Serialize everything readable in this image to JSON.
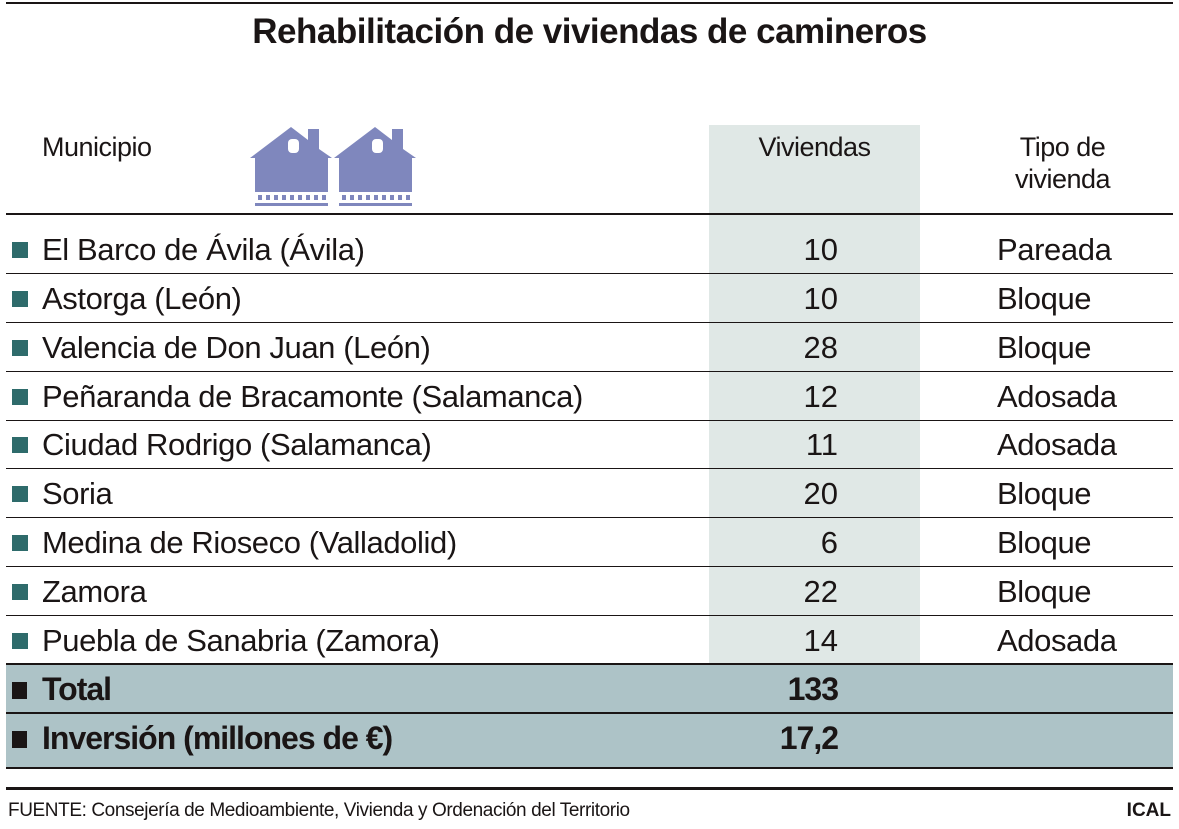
{
  "title": "Rehabilitación de viviendas de camineros",
  "headers": {
    "municipio": "Municipio",
    "viviendas": "Viviendas",
    "tipo": "Tipo de vivienda"
  },
  "icon": "houses-icon",
  "colors": {
    "bullet": "#2e6b6b",
    "viviendas_column": "#e0e8e6",
    "summary_rows": "#adc3c7",
    "house_icon": "#7f87bd"
  },
  "rows": [
    {
      "municipio": "El Barco de Ávila (Ávila)",
      "viviendas": "10",
      "tipo": "Pareada"
    },
    {
      "municipio": "Astorga (León)",
      "viviendas": "10",
      "tipo": "Bloque"
    },
    {
      "municipio": "Valencia de Don Juan (León)",
      "viviendas": "28",
      "tipo": "Bloque"
    },
    {
      "municipio": "Peñaranda de Bracamonte (Salamanca)",
      "viviendas": "12",
      "tipo": "Adosada"
    },
    {
      "municipio": "Ciudad Rodrigo (Salamanca)",
      "viviendas": "11",
      "tipo": "Adosada"
    },
    {
      "municipio": "Soria",
      "viviendas": "20",
      "tipo": "Bloque"
    },
    {
      "municipio": "Medina de Rioseco (Valladolid)",
      "viviendas": "6",
      "tipo": "Bloque"
    },
    {
      "municipio": "Zamora",
      "viviendas": "22",
      "tipo": "Bloque"
    },
    {
      "municipio": "Puebla de Sanabria (Zamora)",
      "viviendas": "14",
      "tipo": "Adosada"
    }
  ],
  "summary": [
    {
      "label": "Total",
      "value": "133"
    },
    {
      "label": "Inversión (millones de €)",
      "value": "17,2"
    }
  ],
  "footer": {
    "source": "FUENTE: Consejería de Medioambiente, Vivienda y Ordenación del Territorio",
    "brand": "ICAL"
  }
}
